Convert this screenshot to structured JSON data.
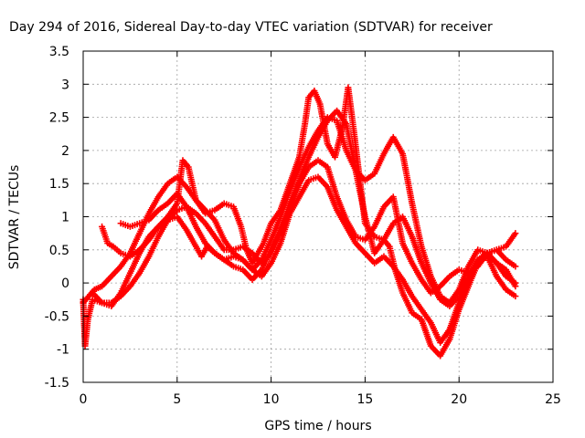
{
  "chart_data": {
    "type": "scatter",
    "title": "Day 294 of 2016, Sidereal Day-to-day VTEC variation (SDTVAR) for receiver",
    "xlabel": "GPS time / hours",
    "ylabel": "SDTVAR / TECUs",
    "xlim": [
      0,
      25
    ],
    "ylim": [
      -1.5,
      3.5
    ],
    "xticks": [
      0,
      5,
      10,
      15,
      20,
      25
    ],
    "xtick_labels": [
      "0",
      "5",
      "10",
      "15",
      "20",
      "25"
    ],
    "yticks": [
      -1.5,
      -1,
      -0.5,
      0,
      0.5,
      1,
      1.5,
      2,
      2.5,
      3,
      3.5
    ],
    "ytick_labels": [
      "-1.5",
      "-1",
      "-0.5",
      "0",
      "0.5",
      "1",
      "1.5",
      "2",
      "2.5",
      "3",
      "3.5"
    ],
    "grid": true,
    "marker": "plus",
    "color": "#ff0000",
    "series": [
      {
        "x": [
          0.0,
          0.1,
          0.25,
          0.5,
          1.0,
          1.5,
          2.0,
          2.5,
          3.0,
          3.5,
          4.0,
          4.5,
          5.0,
          5.3,
          5.6,
          6.0,
          6.5,
          7.0,
          7.5,
          8.0,
          8.4,
          8.7,
          9.0,
          9.3,
          9.6,
          10.0,
          10.5,
          11.0,
          11.5,
          11.8,
          12.0,
          12.3,
          12.6,
          13.0,
          13.4,
          13.8,
          14.1,
          14.4,
          14.7,
          15.0,
          15.5,
          16.0,
          16.3,
          16.6,
          17.0,
          17.5,
          18.0,
          18.5,
          19.0,
          19.5,
          20.0,
          20.5,
          21.0,
          21.5,
          22.0,
          22.5,
          23.0
        ],
        "y": [
          -0.25,
          -0.95,
          -0.55,
          -0.25,
          -0.3,
          -0.35,
          -0.15,
          0.15,
          0.45,
          0.7,
          0.85,
          1.0,
          1.2,
          1.85,
          1.75,
          1.25,
          1.05,
          1.1,
          1.2,
          1.15,
          0.85,
          0.5,
          0.3,
          0.45,
          0.6,
          0.9,
          1.1,
          1.5,
          1.9,
          2.4,
          2.8,
          2.9,
          2.7,
          2.1,
          1.9,
          2.35,
          2.95,
          2.3,
          1.6,
          0.9,
          0.7,
          0.65,
          0.55,
          0.2,
          -0.15,
          -0.45,
          -0.55,
          -0.95,
          -1.1,
          -0.85,
          -0.4,
          -0.05,
          0.3,
          0.4,
          0.1,
          -0.1,
          -0.2
        ]
      },
      {
        "x": [
          0.0,
          0.3,
          0.6,
          1.0,
          1.5,
          2.0,
          2.5,
          3.0,
          3.5,
          4.0,
          4.5,
          5.0,
          5.5,
          6.0,
          6.5,
          7.0,
          7.5,
          8.0,
          8.5,
          9.0,
          9.5,
          10.0,
          10.5,
          11.0,
          11.5,
          12.0,
          12.5,
          13.0,
          13.5,
          14.0,
          14.5,
          15.0,
          15.5,
          16.0,
          16.5,
          17.0,
          17.5,
          18.0,
          18.5,
          19.0,
          19.5,
          20.0,
          20.5,
          21.0,
          21.5,
          22.0,
          22.5,
          23.0
        ],
        "y": [
          -0.3,
          -0.2,
          -0.1,
          -0.05,
          0.1,
          0.25,
          0.45,
          0.75,
          1.05,
          1.3,
          1.5,
          1.6,
          1.45,
          1.25,
          1.1,
          0.95,
          0.65,
          0.45,
          0.35,
          0.2,
          0.35,
          0.65,
          1.0,
          1.4,
          1.75,
          2.05,
          2.3,
          2.5,
          2.45,
          2.0,
          1.7,
          1.55,
          1.65,
          1.95,
          2.2,
          1.95,
          1.2,
          0.55,
          0.1,
          -0.2,
          -0.3,
          -0.1,
          0.25,
          0.5,
          0.45,
          0.3,
          0.2,
          -0.05
        ]
      },
      {
        "x": [
          0.5,
          1.0,
          1.5,
          2.0,
          2.5,
          3.0,
          3.5,
          4.0,
          4.5,
          5.0,
          5.5,
          6.0,
          6.5,
          7.0,
          7.5,
          8.0,
          8.5,
          9.0,
          9.5,
          10.0,
          10.5,
          11.0,
          11.5,
          12.0,
          12.5,
          13.0,
          13.5,
          14.0,
          14.5,
          15.0,
          15.5,
          16.0,
          16.5,
          17.0,
          17.5,
          18.0,
          18.5,
          19.0,
          19.5,
          20.0,
          20.5,
          21.0,
          21.5,
          22.0,
          22.5,
          23.0
        ],
        "y": [
          -0.15,
          -0.3,
          -0.3,
          -0.2,
          -0.05,
          0.15,
          0.4,
          0.7,
          0.95,
          1.1,
          1.15,
          1.05,
          0.9,
          0.7,
          0.5,
          0.5,
          0.55,
          0.45,
          0.3,
          0.45,
          0.8,
          1.2,
          1.55,
          1.9,
          2.2,
          2.45,
          2.6,
          2.4,
          1.7,
          1.0,
          0.45,
          0.65,
          0.9,
          1.0,
          0.7,
          0.3,
          0.0,
          -0.25,
          -0.35,
          -0.2,
          0.1,
          0.35,
          0.45,
          0.3,
          0.1,
          0.0
        ]
      },
      {
        "x": [
          1.0,
          1.3,
          1.6,
          2.0,
          2.5,
          3.0,
          3.5,
          4.0,
          4.5,
          5.0,
          5.5,
          6.0,
          6.3,
          6.6,
          7.0,
          7.5,
          8.0,
          8.5,
          9.0,
          9.5,
          10.0,
          10.5,
          11.0,
          11.5,
          12.0,
          12.5,
          13.0,
          13.5,
          14.0,
          14.5,
          15.0,
          15.5,
          16.0,
          16.5,
          17.0,
          17.5,
          18.0,
          18.5,
          19.0,
          19.5,
          20.0,
          20.5,
          21.0,
          21.5,
          22.0,
          22.5,
          23.0
        ],
        "y": [
          0.85,
          0.6,
          0.55,
          0.45,
          0.4,
          0.5,
          0.65,
          0.85,
          0.95,
          1.0,
          0.8,
          0.55,
          0.4,
          0.55,
          0.45,
          0.35,
          0.25,
          0.2,
          0.05,
          0.2,
          0.5,
          0.8,
          1.1,
          1.5,
          1.75,
          1.85,
          1.75,
          1.3,
          0.95,
          0.7,
          0.65,
          0.85,
          1.15,
          1.3,
          0.6,
          0.3,
          0.05,
          -0.15,
          -0.05,
          0.1,
          0.2,
          0.15,
          0.25,
          0.45,
          0.5,
          0.35,
          0.25
        ]
      },
      {
        "x": [
          2.0,
          2.5,
          3.0,
          3.5,
          4.0,
          4.5,
          5.0,
          5.5,
          6.0,
          6.5,
          7.0,
          7.5,
          8.0,
          8.5,
          9.0,
          9.5,
          10.0,
          10.5,
          11.0,
          11.5,
          12.0,
          12.5,
          13.0,
          13.5,
          14.0,
          14.5,
          15.0,
          15.5,
          16.0,
          16.5,
          17.0,
          17.5,
          18.0,
          18.5,
          19.0,
          19.5,
          20.0,
          20.5,
          21.0,
          21.5,
          22.0,
          22.5,
          23.0
        ],
        "y": [
          0.9,
          0.85,
          0.9,
          0.95,
          1.1,
          1.2,
          1.35,
          1.15,
          0.85,
          0.6,
          0.45,
          0.35,
          0.4,
          0.35,
          0.2,
          0.1,
          0.3,
          0.6,
          1.05,
          1.3,
          1.55,
          1.6,
          1.45,
          1.1,
          0.85,
          0.6,
          0.45,
          0.3,
          0.4,
          0.25,
          0.05,
          -0.2,
          -0.4,
          -0.6,
          -0.9,
          -0.7,
          -0.3,
          0.05,
          0.3,
          0.45,
          0.5,
          0.55,
          0.75
        ]
      }
    ]
  }
}
